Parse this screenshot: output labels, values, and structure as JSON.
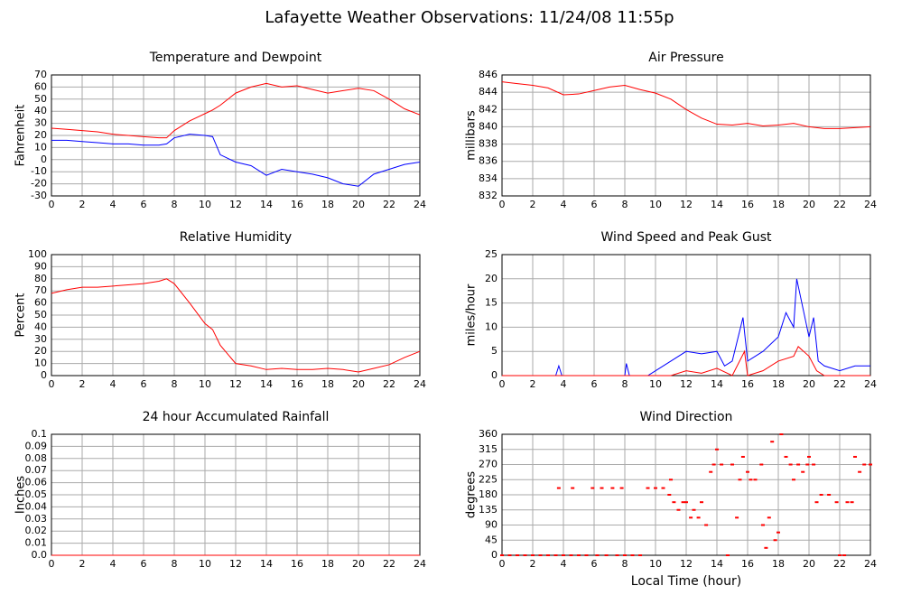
{
  "title": "Lafayette Weather Observations: 11/24/08 11:55p",
  "chart_data": [
    {
      "type": "line",
      "title": "Temperature and Dewpoint",
      "ylabel": "Fahrenheit",
      "x": [
        0,
        1,
        2,
        3,
        4,
        5,
        6,
        7,
        7.5,
        8,
        9,
        10,
        10.5,
        11,
        12,
        13,
        14,
        15,
        16,
        17,
        18,
        19,
        20,
        21,
        22,
        23,
        24
      ],
      "series": [
        {
          "color": "#ff0000",
          "values": [
            26,
            25,
            24,
            23,
            21,
            20,
            19,
            18,
            18,
            24,
            32,
            38,
            41,
            45,
            55,
            60,
            63,
            60,
            61,
            58,
            55,
            57,
            59,
            57,
            50,
            42,
            37
          ]
        },
        {
          "color": "#0000ff",
          "values": [
            16,
            16,
            15,
            14,
            13,
            13,
            12,
            12,
            13,
            18,
            21,
            20,
            19,
            4,
            -2,
            -5,
            -13,
            -8,
            -10,
            -12,
            -15,
            -20,
            -22,
            -12,
            -8,
            -4,
            -2
          ]
        }
      ],
      "xlim": [
        0,
        24
      ],
      "xticks": [
        0,
        2,
        4,
        6,
        8,
        10,
        12,
        14,
        16,
        18,
        20,
        22,
        24
      ],
      "ylim": [
        -30,
        70
      ],
      "yticks": [
        -30,
        -20,
        -10,
        0,
        10,
        20,
        30,
        40,
        50,
        60,
        70
      ],
      "grid": true
    },
    {
      "type": "line",
      "title": "Air Pressure",
      "ylabel": "millibars",
      "x": [
        0,
        1,
        2,
        3,
        4,
        5,
        6,
        7,
        8,
        9,
        10,
        11,
        12,
        13,
        14,
        15,
        16,
        17,
        18,
        19,
        20,
        21,
        22,
        23,
        24
      ],
      "series": [
        {
          "color": "#ff0000",
          "values": [
            845.2,
            845,
            844.8,
            844.5,
            843.7,
            843.8,
            844.2,
            844.6,
            844.8,
            844.3,
            843.9,
            843.2,
            842,
            841,
            840.3,
            840.2,
            840.4,
            840.1,
            840.2,
            840.4,
            840,
            839.8,
            839.8,
            839.9,
            840
          ]
        }
      ],
      "xlim": [
        0,
        24
      ],
      "xticks": [
        0,
        2,
        4,
        6,
        8,
        10,
        12,
        14,
        16,
        18,
        20,
        22,
        24
      ],
      "ylim": [
        832,
        846
      ],
      "yticks": [
        832,
        834,
        836,
        838,
        840,
        842,
        844,
        846
      ],
      "grid": true
    },
    {
      "type": "line",
      "title": "Relative Humidity",
      "ylabel": "Percent",
      "x": [
        0,
        1,
        2,
        3,
        4,
        5,
        6,
        7,
        7.5,
        8,
        9,
        10,
        10.5,
        11,
        12,
        13,
        14,
        15,
        16,
        17,
        18,
        19,
        20,
        21,
        22,
        23,
        24
      ],
      "series": [
        {
          "color": "#ff0000",
          "values": [
            68,
            71,
            73,
            73,
            74,
            75,
            76,
            78,
            80,
            76,
            60,
            43,
            38,
            25,
            10,
            8,
            5,
            6,
            5,
            5,
            6,
            5,
            3,
            6,
            9,
            15,
            20
          ]
        }
      ],
      "xlim": [
        0,
        24
      ],
      "xticks": [
        0,
        2,
        4,
        6,
        8,
        10,
        12,
        14,
        16,
        18,
        20,
        22,
        24
      ],
      "ylim": [
        0,
        100
      ],
      "yticks": [
        0,
        10,
        20,
        30,
        40,
        50,
        60,
        70,
        80,
        90,
        100
      ],
      "grid": true
    },
    {
      "type": "line",
      "title": "Wind Speed and Peak Gust",
      "ylabel": "miles/hour",
      "series": [
        {
          "color": "#0000ff",
          "x": [
            0,
            3.5,
            3.7,
            3.9,
            8,
            8.1,
            8.3,
            9.5,
            10,
            11,
            12,
            13,
            14,
            14.5,
            15,
            15.7,
            16,
            17,
            18,
            18.5,
            19,
            19.2,
            19.6,
            20,
            20.3,
            20.6,
            21,
            22,
            23,
            24
          ],
          "values": [
            0,
            0,
            2,
            0,
            0,
            2.5,
            0,
            0,
            1,
            3,
            5,
            4.5,
            5,
            2,
            3,
            12,
            3,
            5,
            8,
            13,
            10,
            20,
            14,
            8,
            12,
            3,
            2,
            1,
            2,
            2
          ]
        },
        {
          "color": "#ff0000",
          "x": [
            0,
            11,
            12,
            13,
            14,
            15,
            15.8,
            16,
            17,
            18,
            19,
            19.3,
            20,
            20.5,
            21,
            24
          ],
          "values": [
            0,
            0,
            1,
            0.5,
            1.5,
            0,
            5,
            0,
            1,
            3,
            4,
            6,
            4,
            1,
            0,
            0
          ]
        }
      ],
      "xlim": [
        0,
        24
      ],
      "xticks": [
        0,
        2,
        4,
        6,
        8,
        10,
        12,
        14,
        16,
        18,
        20,
        22,
        24
      ],
      "ylim": [
        0,
        25
      ],
      "yticks": [
        0,
        5,
        10,
        15,
        20,
        25
      ],
      "grid": true
    },
    {
      "type": "line",
      "title": "24 hour Accumulated Rainfall",
      "ylabel": "Inches",
      "x": [
        0,
        24
      ],
      "series": [
        {
          "color": "#ff0000",
          "values": [
            0,
            0
          ]
        }
      ],
      "xlim": [
        0,
        24
      ],
      "xticks": [
        0,
        2,
        4,
        6,
        8,
        10,
        12,
        14,
        16,
        18,
        20,
        22,
        24
      ],
      "ylim": [
        0,
        0.1
      ],
      "yticks": [
        {
          "value": 0,
          "label": "0.0"
        },
        0.01,
        0.02,
        0.03,
        0.04,
        0.05,
        0.06,
        0.07,
        0.08,
        0.09,
        0.1
      ],
      "grid": true
    },
    {
      "type": "scatter",
      "title": "Wind Direction",
      "ylabel": "degrees",
      "xlabel": "Local Time (hour)",
      "color": "#ff0000",
      "x": [
        0,
        0.5,
        1,
        1.5,
        2,
        2.5,
        3,
        3.5,
        3.7,
        4,
        4.5,
        4.6,
        5,
        5.5,
        5.9,
        6.2,
        6.5,
        6.8,
        7.2,
        7.5,
        7.8,
        8,
        8.5,
        9,
        9.5,
        10,
        10.5,
        10.9,
        11,
        11.2,
        11.5,
        11.8,
        12,
        12.3,
        12.5,
        12.8,
        13,
        13.3,
        13.6,
        13.8,
        14,
        14.3,
        14.7,
        15,
        15.3,
        15.5,
        15.7,
        16,
        16.2,
        16.5,
        16.9,
        17,
        17.2,
        17.4,
        17.6,
        17.8,
        18,
        18.2,
        18.5,
        18.8,
        19,
        19.3,
        19.6,
        19.9,
        20,
        20.3,
        20.5,
        20.8,
        21.3,
        21.8,
        22,
        22.3,
        22.5,
        22.8,
        23,
        23.3,
        23.6,
        24
      ],
      "values": [
        0,
        0,
        0,
        0,
        0,
        0,
        0,
        0,
        200,
        0,
        0,
        200,
        0,
        0,
        200,
        0,
        200,
        0,
        200,
        0,
        200,
        0,
        0,
        0,
        200,
        200,
        200,
        180,
        225,
        158,
        135,
        158,
        158,
        112,
        135,
        112,
        158,
        90,
        248,
        270,
        315,
        270,
        0,
        270,
        112,
        225,
        293,
        248,
        225,
        225,
        270,
        90,
        22,
        112,
        338,
        45,
        68,
        360,
        293,
        270,
        225,
        270,
        248,
        270,
        293,
        270,
        158,
        180,
        180,
        158,
        0,
        0,
        158,
        158,
        293,
        248,
        270,
        270
      ],
      "xlim": [
        0,
        24
      ],
      "xticks": [
        0,
        2,
        4,
        6,
        8,
        10,
        12,
        14,
        16,
        18,
        20,
        22,
        24
      ],
      "ylim": [
        0,
        360
      ],
      "yticks": [
        0,
        45,
        90,
        135,
        180,
        225,
        270,
        315,
        360
      ],
      "grid": true
    }
  ]
}
